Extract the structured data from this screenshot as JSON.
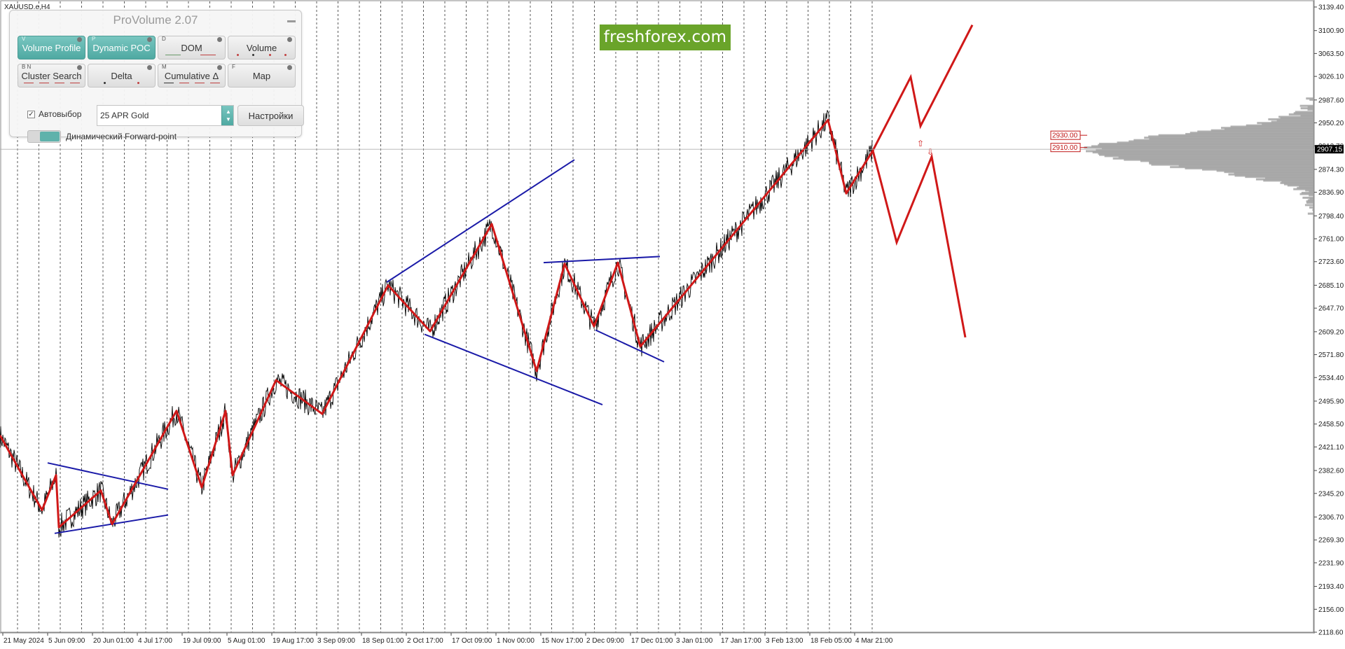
{
  "symbol": "XAUUSD.e,H4",
  "brand": "freshforex.com",
  "panel": {
    "title": "ProVolume 2.07",
    "buttons": [
      {
        "key": "V",
        "label": "Volume Profile",
        "active": true
      },
      {
        "key": "P",
        "label": "Dynamic POC",
        "active": true
      },
      {
        "key": "D",
        "label": "DOM",
        "active": false
      },
      {
        "key": "",
        "label": "Volume",
        "active": false
      },
      {
        "key": "B N",
        "label": "Cluster Search",
        "active": false
      },
      {
        "key": "",
        "label": "Delta",
        "active": false
      },
      {
        "key": "M",
        "label": "Cumulative Δ",
        "active": false
      },
      {
        "key": "F",
        "label": "Map",
        "active": false
      }
    ],
    "auto_label": "Автовыбор",
    "auto_checked": true,
    "instrument": "25 APR Gold",
    "settings_label": "Настройки",
    "forward_label": "Динамический Forward-point"
  },
  "chart_data": {
    "type": "line",
    "symbol": "XAUUSD.e",
    "timeframe": "H4",
    "ylim": [
      2118.6,
      3139.4
    ],
    "y_ticks": [
      "3139.40",
      "3100.90",
      "3063.50",
      "3026.10",
      "2987.60",
      "2950.20",
      "2912.70",
      "2874.30",
      "2836.90",
      "2798.40",
      "2761.00",
      "2723.60",
      "2685.10",
      "2647.70",
      "2609.20",
      "2571.80",
      "2534.40",
      "2495.90",
      "2458.50",
      "2421.10",
      "2382.60",
      "2345.20",
      "2306.70",
      "2269.30",
      "2231.90",
      "2193.40",
      "2156.00",
      "2118.60"
    ],
    "x_ticks": [
      "21 May 2024",
      "5 Jun 09:00",
      "20 Jun 01:00",
      "4 Jul 17:00",
      "19 Jul 09:00",
      "5 Aug 01:00",
      "19 Aug 17:00",
      "3 Sep 09:00",
      "18 Sep 01:00",
      "2 Oct 17:00",
      "17 Oct 09:00",
      "1 Nov 00:00",
      "15 Nov 17:00",
      "2 Dec 09:00",
      "17 Dec 01:00",
      "3 Jan 01:00",
      "17 Jan 17:00",
      "3 Feb 13:00",
      "18 Feb 05:00",
      "4 Mar 21:00"
    ],
    "current_price": "2907.15",
    "levels": [
      {
        "label": "2930.00",
        "value": 2930.0
      },
      {
        "label": "2910.00",
        "value": 2910.0
      }
    ],
    "zigzag": [
      [
        0,
        2440
      ],
      [
        60,
        2318
      ],
      [
        80,
        2375
      ],
      [
        84,
        2290
      ],
      [
        144,
        2350
      ],
      [
        160,
        2295
      ],
      [
        252,
        2480
      ],
      [
        288,
        2355
      ],
      [
        322,
        2480
      ],
      [
        332,
        2375
      ],
      [
        394,
        2530
      ],
      [
        460,
        2475
      ],
      [
        554,
        2685
      ],
      [
        614,
        2610
      ],
      [
        702,
        2785
      ],
      [
        766,
        2545
      ],
      [
        806,
        2720
      ],
      [
        848,
        2618
      ],
      [
        882,
        2722
      ],
      [
        914,
        2585
      ],
      [
        1182,
        2955
      ],
      [
        1208,
        2835
      ],
      [
        1246,
        2905
      ]
    ],
    "projection_up": [
      [
        1246,
        2905
      ],
      [
        1300,
        3025
      ],
      [
        1314,
        2945
      ],
      [
        1388,
        3110
      ]
    ],
    "projection_down": [
      [
        1246,
        2905
      ],
      [
        1280,
        2755
      ],
      [
        1330,
        2895
      ],
      [
        1378,
        2600
      ]
    ],
    "channels": [
      [
        [
          68,
          2395
        ],
        [
          240,
          2352
        ]
      ],
      [
        [
          78,
          2280
        ],
        [
          240,
          2310
        ]
      ],
      [
        [
          552,
          2690
        ],
        [
          820,
          2890
        ]
      ],
      [
        [
          606,
          2605
        ],
        [
          860,
          2490
        ]
      ],
      [
        [
          776,
          2722
        ],
        [
          942,
          2732
        ]
      ],
      [
        [
          850,
          2612
        ],
        [
          948,
          2560
        ]
      ]
    ]
  }
}
